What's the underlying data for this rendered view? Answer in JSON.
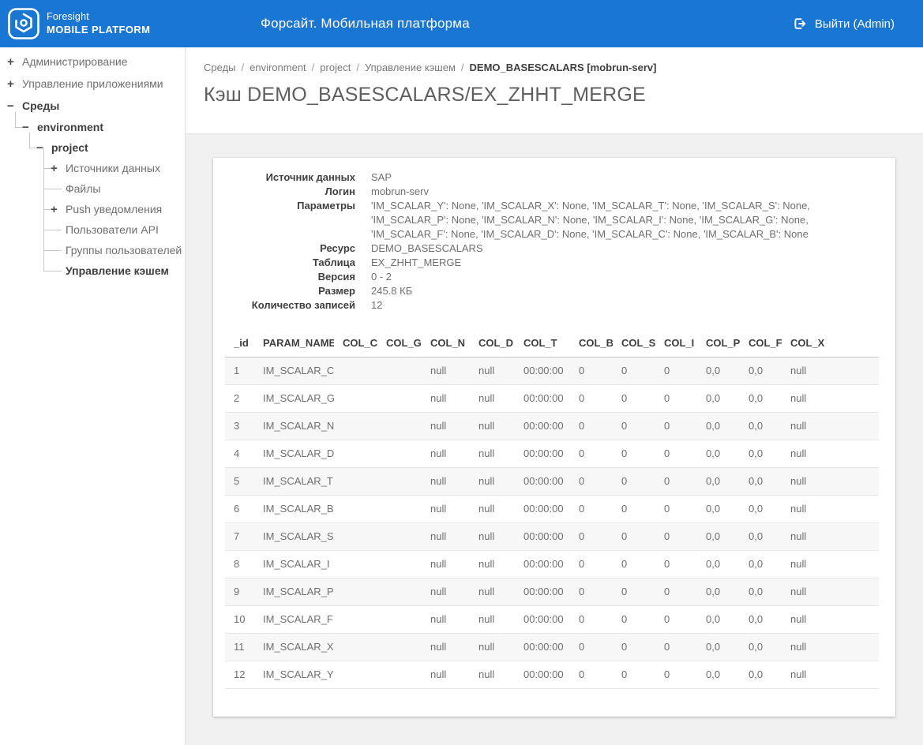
{
  "colors": {
    "header_bg": "#1976d2"
  },
  "header": {
    "logo": {
      "line1": "Foresight",
      "line2": "MOBILE PLATFORM"
    },
    "title": "Форсайт. Мобильная платформа",
    "logout_label": "Выйти (Admin)"
  },
  "sidebar": {
    "items": [
      {
        "label": "Администрирование",
        "toggle": "+",
        "level": 0,
        "bold": false,
        "selected": false
      },
      {
        "label": "Управление приложениями",
        "toggle": "+",
        "level": 0,
        "bold": false,
        "selected": false
      },
      {
        "label": "Среды",
        "toggle": "−",
        "level": 0,
        "bold": true,
        "selected": false
      },
      {
        "label": "environment",
        "toggle": "−",
        "level": 1,
        "bold": true,
        "selected": false
      },
      {
        "label": "project",
        "toggle": "−",
        "level": 2,
        "bold": true,
        "selected": false
      },
      {
        "label": "Источники данных",
        "toggle": "+",
        "level": 3,
        "bold": false,
        "selected": false
      },
      {
        "label": "Файлы",
        "toggle": "",
        "level": 3,
        "bold": false,
        "selected": false
      },
      {
        "label": "Push уведомления",
        "toggle": "+",
        "level": 3,
        "bold": false,
        "selected": false
      },
      {
        "label": "Пользователи API",
        "toggle": "",
        "level": 3,
        "bold": false,
        "selected": false
      },
      {
        "label": "Группы пользователей",
        "toggle": "",
        "level": 3,
        "bold": false,
        "selected": false
      },
      {
        "label": "Управление кэшем",
        "toggle": "",
        "level": 3,
        "bold": true,
        "selected": true
      }
    ]
  },
  "breadcrumb": {
    "separator": "/",
    "links": [
      "Среды",
      "environment",
      "project",
      "Управление кэшем"
    ],
    "current": "DEMO_BASESCALARS [mobrun-serv]"
  },
  "page": {
    "title": "Кэш DEMO_BASESCALARS/EX_ZHHT_MERGE"
  },
  "details": {
    "rows": [
      {
        "label": "Источник данных",
        "value": "SAP"
      },
      {
        "label": "Логин",
        "value": "mobrun-serv"
      },
      {
        "label": "Параметры",
        "value": "'IM_SCALAR_Y': None, 'IM_SCALAR_X': None, 'IM_SCALAR_T': None, 'IM_SCALAR_S': None, 'IM_SCALAR_P': None, 'IM_SCALAR_N': None, 'IM_SCALAR_I': None, 'IM_SCALAR_G': None, 'IM_SCALAR_F': None, 'IM_SCALAR_D': None, 'IM_SCALAR_C': None, 'IM_SCALAR_B': None"
      },
      {
        "label": "Ресурс",
        "value": "DEMO_BASESCALARS"
      },
      {
        "label": "Таблица",
        "value": "EX_ZHHT_MERGE"
      },
      {
        "label": "Версия",
        "value": "0 - 2"
      },
      {
        "label": "Размер",
        "value": "245.8 КБ"
      },
      {
        "label": "Количество записей",
        "value": "12"
      }
    ]
  },
  "table": {
    "columns": [
      "_id",
      "PARAM_NAME",
      "COL_C",
      "COL_G",
      "COL_N",
      "COL_D",
      "COL_T",
      "COL_B",
      "COL_S",
      "COL_I",
      "COL_P",
      "COL_F",
      "COL_X"
    ],
    "rows": [
      [
        "1",
        "IM_SCALAR_C",
        "",
        "",
        "null",
        "null",
        "00:00:00",
        "0",
        "0",
        "0",
        "0,0",
        "0,0",
        "null"
      ],
      [
        "2",
        "IM_SCALAR_G",
        "",
        "",
        "null",
        "null",
        "00:00:00",
        "0",
        "0",
        "0",
        "0,0",
        "0,0",
        "null"
      ],
      [
        "3",
        "IM_SCALAR_N",
        "",
        "",
        "null",
        "null",
        "00:00:00",
        "0",
        "0",
        "0",
        "0,0",
        "0,0",
        "null"
      ],
      [
        "4",
        "IM_SCALAR_D",
        "",
        "",
        "null",
        "null",
        "00:00:00",
        "0",
        "0",
        "0",
        "0,0",
        "0,0",
        "null"
      ],
      [
        "5",
        "IM_SCALAR_T",
        "",
        "",
        "null",
        "null",
        "00:00:00",
        "0",
        "0",
        "0",
        "0,0",
        "0,0",
        "null"
      ],
      [
        "6",
        "IM_SCALAR_B",
        "",
        "",
        "null",
        "null",
        "00:00:00",
        "0",
        "0",
        "0",
        "0,0",
        "0,0",
        "null"
      ],
      [
        "7",
        "IM_SCALAR_S",
        "",
        "",
        "null",
        "null",
        "00:00:00",
        "0",
        "0",
        "0",
        "0,0",
        "0,0",
        "null"
      ],
      [
        "8",
        "IM_SCALAR_I",
        "",
        "",
        "null",
        "null",
        "00:00:00",
        "0",
        "0",
        "0",
        "0,0",
        "0,0",
        "null"
      ],
      [
        "9",
        "IM_SCALAR_P",
        "",
        "",
        "null",
        "null",
        "00:00:00",
        "0",
        "0",
        "0",
        "0,0",
        "0,0",
        "null"
      ],
      [
        "10",
        "IM_SCALAR_F",
        "",
        "",
        "null",
        "null",
        "00:00:00",
        "0",
        "0",
        "0",
        "0,0",
        "0,0",
        "null"
      ],
      [
        "11",
        "IM_SCALAR_X",
        "",
        "",
        "null",
        "null",
        "00:00:00",
        "0",
        "0",
        "0",
        "0,0",
        "0,0",
        "null"
      ],
      [
        "12",
        "IM_SCALAR_Y",
        "",
        "",
        "null",
        "null",
        "00:00:00",
        "0",
        "0",
        "0",
        "0,0",
        "0,0",
        "null"
      ]
    ]
  }
}
